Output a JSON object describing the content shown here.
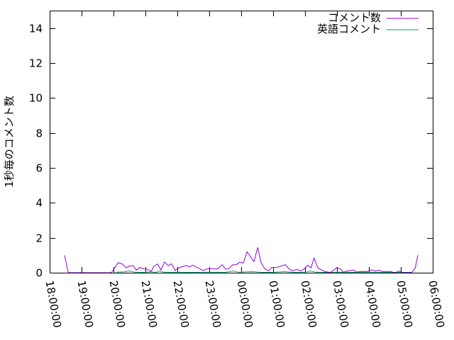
{
  "chart_data": {
    "type": "line",
    "title": "",
    "xlabel": "",
    "ylabel": "1秒毎のコメント数",
    "ylim": [
      0,
      15
    ],
    "xlim": [
      "18:00:00",
      "06:00:00"
    ],
    "yticks": [
      "0",
      "2",
      "4",
      "6",
      "8",
      "10",
      "12",
      "14"
    ],
    "xticks": [
      "18:00:00",
      "19:00:00",
      "20:00:00",
      "21:00:00",
      "22:00:00",
      "23:00:00",
      "00:00:00",
      "01:00:00",
      "02:00:00",
      "03:00:00",
      "04:00:00",
      "05:00:00",
      "06:00:00"
    ],
    "grid": false,
    "legend_position": "top-right",
    "series": [
      {
        "name": "コメント数",
        "color": "#9400d3",
        "x": [
          "18:28",
          "18:35",
          "19:00",
          "19:30",
          "19:56",
          "20:09",
          "20:17",
          "20:24",
          "20:29",
          "20:37",
          "20:43",
          "20:49",
          "20:57",
          "21:04",
          "21:11",
          "21:16",
          "21:23",
          "21:29",
          "21:36",
          "21:43",
          "21:49",
          "21:56",
          "22:01",
          "22:09",
          "22:16",
          "22:23",
          "22:29",
          "22:37",
          "22:49",
          "22:57",
          "23:07",
          "23:16",
          "23:24",
          "23:31",
          "23:37",
          "23:44",
          "23:51",
          "23:57",
          "00:04",
          "00:11",
          "00:17",
          "00:24",
          "00:31",
          "00:37",
          "00:44",
          "00:51",
          "00:57",
          "01:07",
          "01:13",
          "01:23",
          "01:31",
          "01:37",
          "01:44",
          "01:52",
          "01:59",
          "02:05",
          "02:11",
          "02:17",
          "02:24",
          "02:31",
          "02:37",
          "02:47",
          "02:53",
          "03:00",
          "03:07",
          "03:12",
          "03:20",
          "03:31",
          "03:37",
          "03:44",
          "03:57",
          "04:05",
          "04:12",
          "04:19",
          "04:25",
          "04:40",
          "04:49",
          "04:57",
          "05:04",
          "05:20",
          "05:27",
          "05:32"
        ],
        "y": [
          1.0,
          0,
          0,
          0,
          0,
          0.57,
          0.49,
          0.28,
          0.37,
          0.41,
          0.14,
          0.3,
          0.22,
          0.19,
          0.08,
          0.38,
          0.5,
          0.16,
          0.62,
          0.4,
          0.51,
          0.12,
          0.26,
          0.34,
          0.41,
          0.34,
          0.43,
          0.3,
          0.12,
          0.24,
          0.22,
          0.22,
          0.46,
          0.2,
          0.24,
          0.46,
          0.46,
          0.6,
          0.55,
          1.2,
          0.93,
          0.64,
          1.45,
          0.6,
          0.23,
          0.1,
          0.3,
          0.3,
          0.36,
          0.46,
          0.19,
          0.1,
          0.19,
          0.1,
          0.23,
          0.43,
          0.27,
          0.84,
          0.27,
          0.16,
          0.07,
          0.01,
          0.12,
          0.3,
          0.2,
          0.03,
          0.1,
          0.15,
          0.04,
          0.07,
          0.07,
          0.16,
          0.1,
          0.14,
          0.07,
          0.07,
          0,
          0.1,
          0.01,
          0,
          0.26,
          1.0
        ]
      },
      {
        "name": "英語コメント",
        "color": "#009e73",
        "x": [
          "20:05",
          "20:20",
          "20:30",
          "20:40",
          "20:55",
          "21:10",
          "21:20",
          "21:25",
          "21:35",
          "21:45",
          "22:00",
          "22:30",
          "23:00",
          "23:30",
          "23:45",
          "23:55",
          "00:20",
          "00:40",
          "01:00",
          "01:20",
          "01:40",
          "02:00",
          "02:10",
          "02:20",
          "02:40",
          "03:00",
          "03:30",
          "04:00",
          "04:30",
          "05:00",
          "05:20"
        ],
        "y": [
          0.03,
          0.05,
          0.1,
          0.03,
          0.02,
          0.05,
          0.02,
          0.1,
          0.03,
          0.02,
          0.03,
          0.02,
          0.03,
          0.02,
          0.1,
          0.03,
          0.06,
          0.02,
          0.02,
          0.06,
          0.02,
          0.03,
          0.1,
          0.03,
          0.02,
          0.03,
          0.02,
          0.03,
          0.02,
          0.02,
          0.02
        ]
      }
    ]
  }
}
